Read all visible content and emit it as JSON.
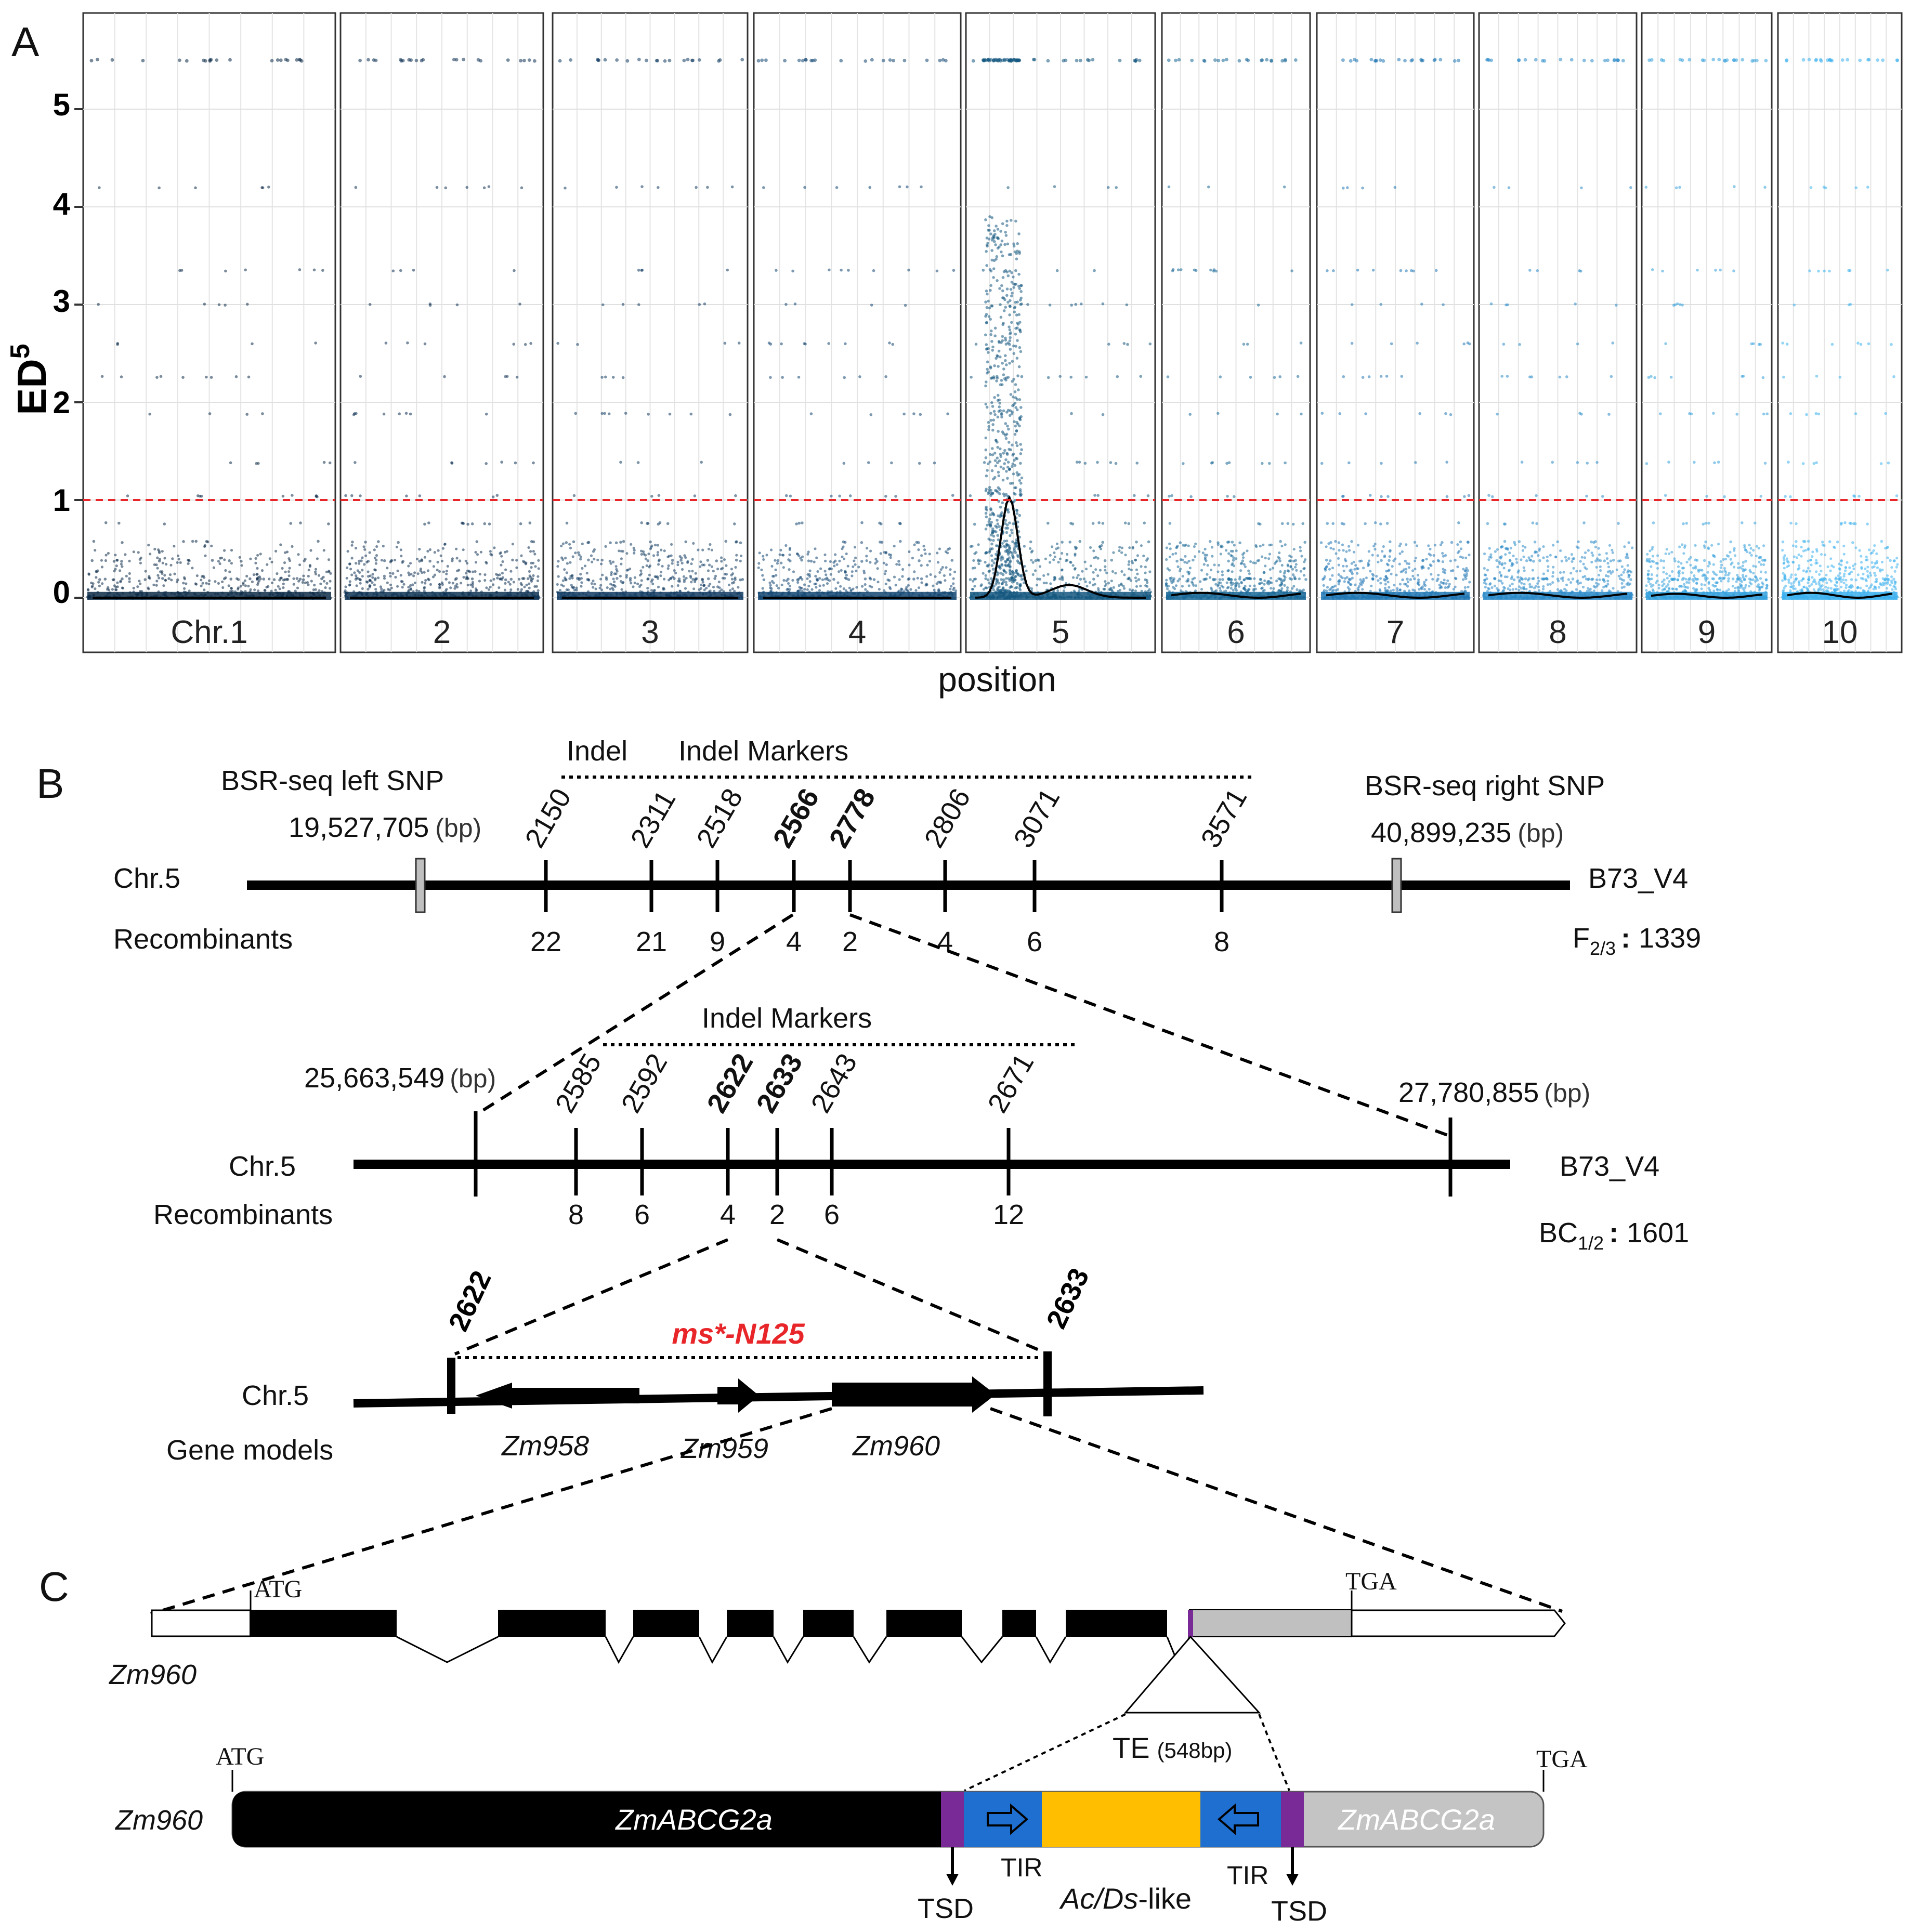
{
  "panel_labels": {
    "a": "A",
    "b": "B",
    "c": "C"
  },
  "colors": {
    "red_threshold": "#e8262a",
    "ms_label": "#e8262a",
    "purple": "#7a2a96",
    "blue_tir": "#1f6fd0",
    "orange_core": "#ffbe00",
    "gray_exon": "#c0c0c0"
  },
  "chart_data": {
    "type": "scatter",
    "ylabel_main": "ED",
    "ylabel_sup": "5",
    "xlabel": "position",
    "ylim": [
      -0.3,
      5.75
    ],
    "yticks": [
      "0",
      "1",
      "2",
      "3",
      "4",
      "5"
    ],
    "threshold": 1.0,
    "chromosomes": [
      {
        "label": "Chr.1",
        "color": "#0d2b48",
        "peak": 0.0,
        "peak_pos": null
      },
      {
        "label": "2",
        "color": "#0e3254",
        "peak": 0.0,
        "peak_pos": null
      },
      {
        "label": "3",
        "color": "#103a61",
        "peak": 0.0,
        "peak_pos": null
      },
      {
        "label": "4",
        "color": "#124571",
        "peak": 0.0,
        "peak_pos": null
      },
      {
        "label": "5",
        "color": "#14577f",
        "peak": 1.02,
        "peak_pos": 0.2
      },
      {
        "label": "6",
        "color": "#1a6898",
        "peak": 0.05,
        "peak_pos": null
      },
      {
        "label": "7",
        "color": "#2077b4",
        "peak": 0.05,
        "peak_pos": null
      },
      {
        "label": "8",
        "color": "#2c8ac8",
        "peak": 0.05,
        "peak_pos": null
      },
      {
        "label": "9",
        "color": "#34a0dd",
        "peak": 0.04,
        "peak_pos": null
      },
      {
        "label": "10",
        "color": "#3cb0ee",
        "peak": 0.05,
        "peak_pos": null
      }
    ]
  },
  "map1": {
    "title": "Indel Markers",
    "indel_note": "Indel",
    "left_snp_label": "BSR-seq left SNP",
    "right_snp_label": "BSR-seq right SNP",
    "left_snp_bp": "19,527,705",
    "right_snp_bp": "40,899,235",
    "bp": "(bp)",
    "chr": "Chr.5",
    "recombinants": "Recombinants",
    "ref": "B73_V4",
    "pop": "F",
    "pop_sub": "2/3",
    "pop_n": "1339",
    "markers": [
      {
        "name": "2150",
        "rec": "22",
        "bold": false
      },
      {
        "name": "2311",
        "rec": "21",
        "bold": false
      },
      {
        "name": "2518",
        "rec": "9",
        "bold": false
      },
      {
        "name": "2566",
        "rec": "4",
        "bold": true
      },
      {
        "name": "2778",
        "rec": "2",
        "bold": true
      },
      {
        "name": "2806",
        "rec": "4",
        "bold": false
      },
      {
        "name": "3071",
        "rec": "6",
        "bold": false
      },
      {
        "name": "3571",
        "rec": "8",
        "bold": false
      }
    ]
  },
  "map2": {
    "title": "Indel Markers",
    "left_bp": "25,663,549",
    "right_bp": "27,780,855",
    "bp": "(bp)",
    "chr": "Chr.5",
    "recombinants": "Recombinants",
    "ref": "B73_V4",
    "pop": "BC",
    "pop_sub": "1/2",
    "pop_n": "1601",
    "markers": [
      {
        "name": "2585",
        "rec": "8",
        "bold": false
      },
      {
        "name": "2592",
        "rec": "6",
        "bold": false
      },
      {
        "name": "2622",
        "rec": "4",
        "bold": true
      },
      {
        "name": "2633",
        "rec": "2",
        "bold": true
      },
      {
        "name": "2643",
        "rec": "6",
        "bold": false
      },
      {
        "name": "2671",
        "rec": "12",
        "bold": false
      }
    ]
  },
  "map3": {
    "left_marker": "2622",
    "right_marker": "2633",
    "locus": "ms*-N125",
    "chr": "Chr.5",
    "gene_models": "Gene models",
    "genes": [
      "Zm958",
      "Zm959",
      "Zm960"
    ]
  },
  "panel_c": {
    "gene": "Zm960",
    "atg": "ATG",
    "tga": "TGA",
    "te_label": "TE",
    "te_size": "(548bp)",
    "abc_label": "ZmABCG2a",
    "tir": "TIR",
    "tsd": "TSD",
    "acds_italic": "Ac/Ds",
    "acds_rest": "-like"
  }
}
